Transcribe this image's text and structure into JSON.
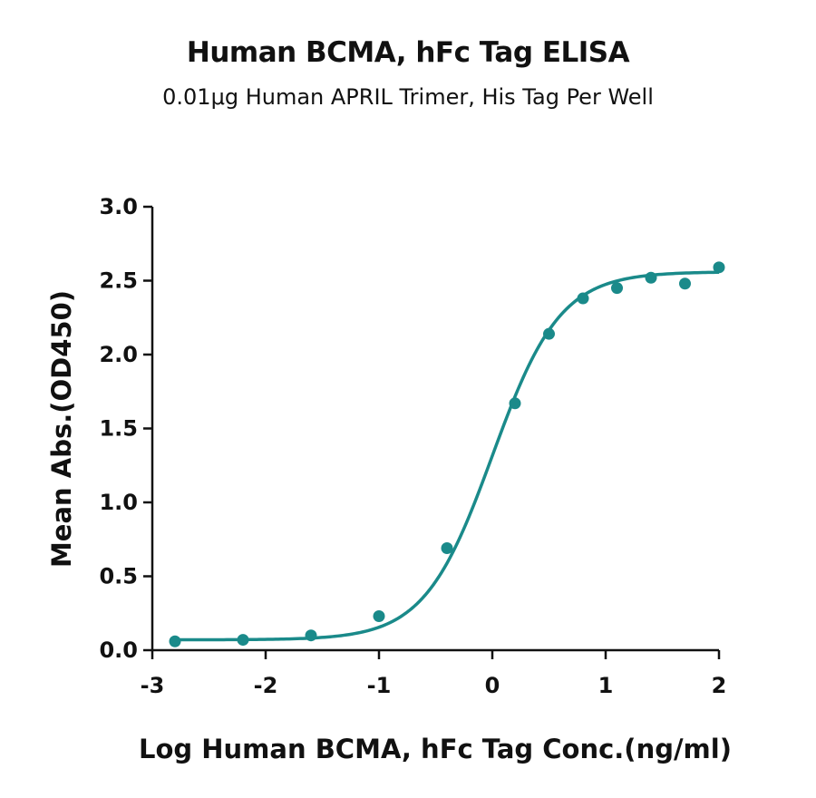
{
  "chart_data": {
    "type": "scatter",
    "title": "Human BCMA, hFc Tag ELISA",
    "subtitle": "0.01μg Human APRIL Trimer, His Tag Per Well",
    "xlabel": "Log Human BCMA, hFc Tag Conc.(ng/ml)",
    "ylabel": "Mean Abs.(OD450)",
    "xlim": [
      -3,
      2
    ],
    "ylim": [
      0,
      3.0
    ],
    "x_ticks": [
      -3,
      -2,
      -1,
      0,
      1,
      2
    ],
    "x_tick_labels": [
      "-3",
      "-2",
      "-1",
      "0",
      "1",
      "2"
    ],
    "y_ticks": [
      0,
      0.5,
      1.0,
      1.5,
      2.0,
      2.5,
      3.0
    ],
    "y_tick_labels": [
      "0.0",
      "0.5",
      "1.0",
      "1.5",
      "2.0",
      "2.5",
      "3.0"
    ],
    "grid": false,
    "color": "#1a8a8a",
    "series": [
      {
        "x": [
          -2.8,
          -2.2,
          -1.6,
          -1.0,
          -0.4,
          0.2,
          0.5,
          0.8,
          1.1,
          1.4,
          1.7,
          2.0
        ],
        "y": [
          0.06,
          0.07,
          0.1,
          0.23,
          0.69,
          1.67,
          2.14,
          2.38,
          2.45,
          2.52,
          2.48,
          2.59
        ]
      }
    ],
    "fit_curve": {
      "model": "4PL",
      "bottom": 0.07,
      "top": 2.56,
      "log_ec50": 0.0,
      "hill_slope": 1.45
    }
  }
}
